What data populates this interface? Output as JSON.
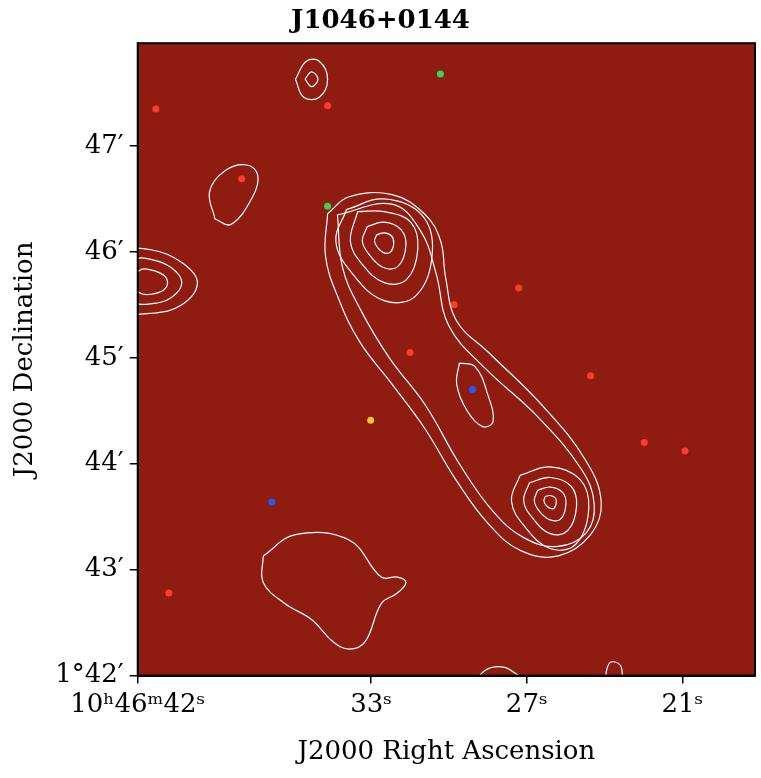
{
  "chart_data": {
    "type": "contour",
    "title": "J1046+0144",
    "x_label": "J2000 Right Ascension",
    "y_label": "J2000 Declination",
    "xlim": [
      42,
      18.2
    ],
    "ylim": [
      42,
      47.97
    ],
    "xticks": [
      {
        "value": 42,
        "label": "10ʰ46ᵐ42ˢ"
      },
      {
        "value": 33,
        "label": "33ˢ"
      },
      {
        "value": 27,
        "label": "27ˢ"
      },
      {
        "value": 21,
        "label": "21ˢ"
      }
    ],
    "yticks": [
      {
        "value": 42,
        "label": "1°42′"
      },
      {
        "value": 43,
        "label": "43′"
      },
      {
        "value": 44,
        "label": "44′"
      },
      {
        "value": 45,
        "label": "45′"
      },
      {
        "value": 46,
        "label": "46′"
      },
      {
        "value": 47,
        "label": "47′"
      }
    ],
    "grid": false,
    "color": "#ffffff",
    "contours": [
      [
        [
          34.68,
          46.36
        ],
        [
          33.85,
          46.52
        ],
        [
          32.19,
          46.54
        ],
        [
          30.95,
          46.36
        ],
        [
          30.33,
          46.11
        ],
        [
          30.13,
          45.76
        ],
        [
          29.71,
          45.35
        ],
        [
          28.47,
          45.05
        ],
        [
          26.4,
          44.55
        ],
        [
          24.75,
          44.04
        ],
        [
          24.13,
          43.64
        ],
        [
          24.54,
          43.33
        ],
        [
          25.78,
          43.13
        ],
        [
          27.23,
          43.18
        ],
        [
          28.47,
          43.43
        ],
        [
          29.71,
          43.84
        ],
        [
          30.95,
          44.34
        ],
        [
          32.19,
          44.75
        ],
        [
          33.44,
          45.15
        ],
        [
          34.26,
          45.56
        ],
        [
          34.76,
          45.96
        ],
        [
          34.68,
          46.36
        ]
      ],
      [
        [
          34.3,
          46.35
        ],
        [
          32.2,
          46.45
        ],
        [
          31.1,
          46.2
        ],
        [
          30.5,
          45.8
        ],
        [
          30.0,
          45.3
        ],
        [
          28.6,
          44.9
        ],
        [
          26.6,
          44.45
        ],
        [
          24.9,
          43.95
        ],
        [
          24.4,
          43.62
        ],
        [
          24.7,
          43.35
        ],
        [
          25.8,
          43.22
        ],
        [
          27.1,
          43.3
        ],
        [
          28.3,
          43.55
        ],
        [
          29.6,
          44.0
        ],
        [
          30.9,
          44.55
        ],
        [
          32.3,
          45.0
        ],
        [
          33.4,
          45.45
        ],
        [
          34.1,
          45.85
        ],
        [
          34.3,
          46.35
        ]
      ],
      [
        [
          33.95,
          46.4
        ],
        [
          32.5,
          46.5
        ],
        [
          31.05,
          46.35
        ],
        [
          30.64,
          46.0
        ],
        [
          31.26,
          45.59
        ],
        [
          32.5,
          45.54
        ],
        [
          33.74,
          45.8
        ],
        [
          34.36,
          46.1
        ],
        [
          33.95,
          46.4
        ]
      ],
      [
        [
          33.52,
          46.38
        ],
        [
          32.5,
          46.38
        ],
        [
          31.48,
          46.28
        ],
        [
          31.2,
          46.03
        ],
        [
          31.63,
          45.74
        ],
        [
          32.5,
          45.71
        ],
        [
          33.37,
          45.89
        ],
        [
          33.8,
          46.1
        ],
        [
          33.52,
          46.38
        ]
      ],
      [
        [
          33.15,
          46.24
        ],
        [
          32.5,
          46.28
        ],
        [
          31.85,
          46.21
        ],
        [
          31.66,
          46.06
        ],
        [
          31.94,
          45.87
        ],
        [
          32.5,
          45.85
        ],
        [
          33.06,
          45.97
        ],
        [
          33.34,
          46.1
        ],
        [
          33.15,
          46.24
        ]
      ],
      [
        [
          32.79,
          46.16
        ],
        [
          32.5,
          46.18
        ],
        [
          32.21,
          46.15
        ],
        [
          32.13,
          46.08
        ],
        [
          32.25,
          46.0
        ],
        [
          32.5,
          45.99
        ],
        [
          32.75,
          46.04
        ],
        [
          32.87,
          46.1
        ],
        [
          32.79,
          46.16
        ]
      ],
      [
        [
          29.6,
          44.95
        ],
        [
          29.0,
          44.92
        ],
        [
          28.5,
          44.65
        ],
        [
          28.3,
          44.4
        ],
        [
          28.7,
          44.35
        ],
        [
          29.3,
          44.5
        ],
        [
          29.7,
          44.75
        ],
        [
          29.6,
          44.95
        ]
      ],
      [
        [
          27.26,
          43.89
        ],
        [
          26.1,
          43.97
        ],
        [
          24.94,
          43.85
        ],
        [
          24.61,
          43.57
        ],
        [
          25.11,
          43.24
        ],
        [
          26.1,
          43.2
        ],
        [
          27.09,
          43.41
        ],
        [
          27.59,
          43.65
        ],
        [
          27.26,
          43.89
        ]
      ],
      [
        [
          26.9,
          43.82
        ],
        [
          26.1,
          43.87
        ],
        [
          25.3,
          43.79
        ],
        [
          25.08,
          43.6
        ],
        [
          25.42,
          43.37
        ],
        [
          26.1,
          43.34
        ],
        [
          26.78,
          43.49
        ],
        [
          27.12,
          43.65
        ],
        [
          26.9,
          43.82
        ]
      ],
      [
        [
          26.58,
          43.75
        ],
        [
          26.1,
          43.78
        ],
        [
          25.62,
          43.73
        ],
        [
          25.49,
          43.62
        ],
        [
          25.69,
          43.48
        ],
        [
          26.1,
          43.47
        ],
        [
          26.51,
          43.55
        ],
        [
          26.71,
          43.65
        ],
        [
          26.58,
          43.75
        ]
      ],
      [
        [
          26.29,
          43.69
        ],
        [
          26.1,
          43.7
        ],
        [
          25.91,
          43.68
        ],
        [
          25.86,
          43.64
        ],
        [
          25.94,
          43.58
        ],
        [
          26.1,
          43.58
        ],
        [
          26.26,
          43.61
        ],
        [
          26.34,
          43.65
        ],
        [
          26.29,
          43.69
        ]
      ],
      [
        [
          35.92,
          47.63
        ],
        [
          35.5,
          47.8
        ],
        [
          35.0,
          47.8
        ],
        [
          34.68,
          47.63
        ],
        [
          35.0,
          47.46
        ],
        [
          35.6,
          47.46
        ],
        [
          35.92,
          47.63
        ]
      ],
      [
        [
          35.55,
          47.63
        ],
        [
          35.3,
          47.7
        ],
        [
          35.05,
          47.63
        ],
        [
          35.3,
          47.56
        ],
        [
          35.55,
          47.63
        ]
      ],
      [
        [
          39.02,
          46.31
        ],
        [
          39.23,
          46.57
        ],
        [
          38.61,
          46.77
        ],
        [
          37.78,
          46.82
        ],
        [
          37.37,
          46.72
        ],
        [
          37.57,
          46.52
        ],
        [
          38.4,
          46.26
        ],
        [
          39.02,
          46.31
        ]
      ],
      [
        [
          43.5,
          45.71
        ],
        [
          42.5,
          46.0
        ],
        [
          41.5,
          46.02
        ],
        [
          40.3,
          45.9
        ],
        [
          39.7,
          45.71
        ],
        [
          40.3,
          45.5
        ],
        [
          41.5,
          45.42
        ],
        [
          42.5,
          45.45
        ],
        [
          43.5,
          45.71
        ]
      ],
      [
        [
          42.9,
          45.71
        ],
        [
          42.2,
          45.92
        ],
        [
          41.5,
          45.93
        ],
        [
          40.7,
          45.85
        ],
        [
          40.3,
          45.71
        ],
        [
          40.7,
          45.57
        ],
        [
          41.5,
          45.51
        ],
        [
          42.2,
          45.53
        ],
        [
          42.9,
          45.71
        ]
      ],
      [
        [
          42.3,
          45.71
        ],
        [
          41.9,
          45.83
        ],
        [
          41.5,
          45.83
        ],
        [
          41.0,
          45.78
        ],
        [
          40.85,
          45.71
        ],
        [
          41.0,
          45.64
        ],
        [
          41.5,
          45.6
        ],
        [
          41.9,
          45.61
        ],
        [
          42.3,
          45.71
        ]
      ],
      [
        [
          37.16,
          43.13
        ],
        [
          35.92,
          43.33
        ],
        [
          33.85,
          43.28
        ],
        [
          32.61,
          42.93
        ],
        [
          31.99,
          42.93
        ],
        [
          31.66,
          42.88
        ],
        [
          31.99,
          42.78
        ],
        [
          32.61,
          42.68
        ],
        [
          33.23,
          42.32
        ],
        [
          33.85,
          42.25
        ],
        [
          34.47,
          42.32
        ],
        [
          35.3,
          42.53
        ],
        [
          36.33,
          42.68
        ],
        [
          37.16,
          42.88
        ],
        [
          37.16,
          43.13
        ]
      ],
      [
        [
          29.1,
          41.9
        ],
        [
          28.6,
          42.05
        ],
        [
          27.9,
          42.08
        ],
        [
          27.3,
          42.0
        ]
      ],
      [
        [
          24.0,
          41.95
        ],
        [
          23.8,
          42.12
        ],
        [
          23.4,
          42.1
        ],
        [
          23.3,
          41.95
        ]
      ]
    ],
    "sources": {
      "x": [
        34.68,
        36.83,
        29.09,
        30.33,
        41.3,
        37.99,
        33.02,
        27.31,
        29.8,
        24.54,
        22.47,
        20.9,
        40.8,
        34.68,
        31.5
      ],
      "y": [
        46.43,
        43.64,
        44.7,
        47.68,
        47.35,
        46.69,
        44.41,
        45.66,
        45.5,
        44.83,
        44.2,
        44.12,
        42.78,
        47.38,
        45.05
      ],
      "colors": [
        "#39d353",
        "#1e5aff",
        "#1e5aff",
        "#39d353",
        "#ff3b2a",
        "#ff3b2a",
        "#e8c53a",
        "#ff3b2a",
        "#ff3b2a",
        "#ff3b2a",
        "#ff3b2a",
        "#ff3b2a",
        "#ff3b2a",
        "#ff3b2a",
        "#ff3b2a"
      ]
    }
  }
}
